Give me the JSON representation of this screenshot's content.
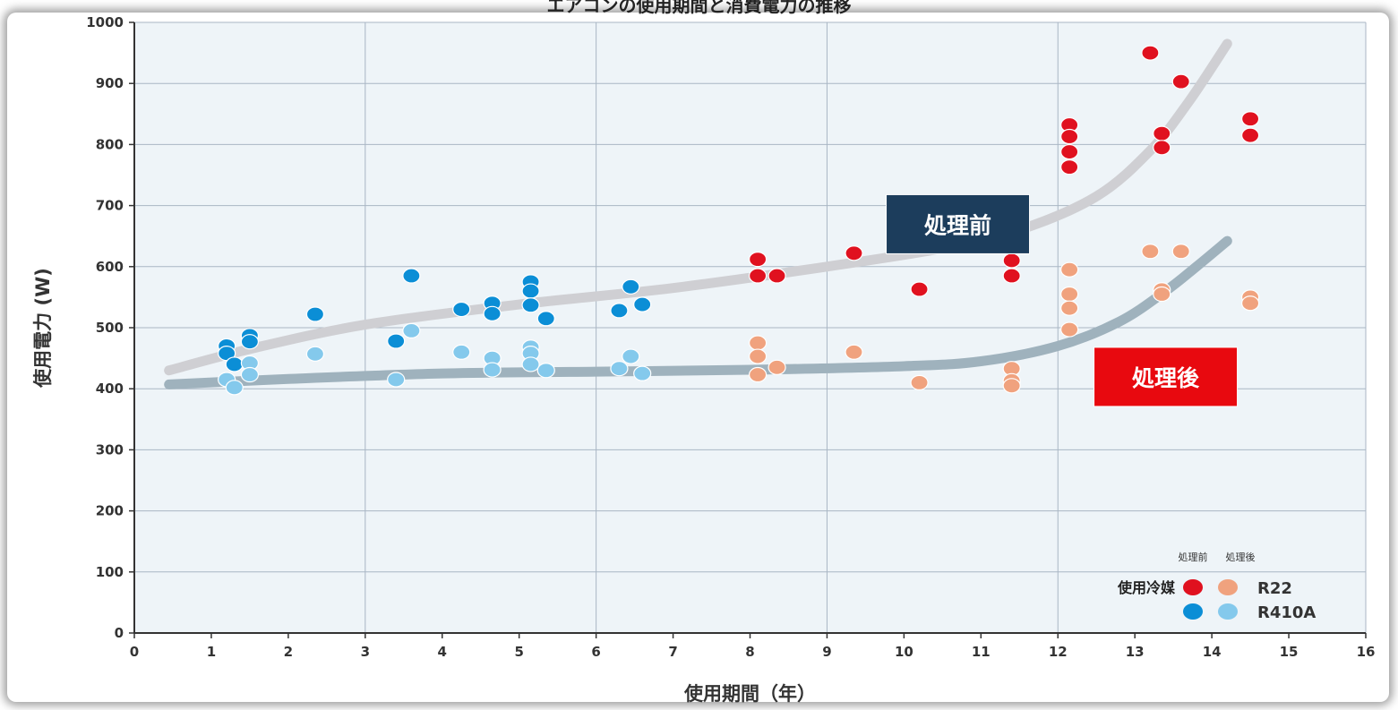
{
  "chart_data": {
    "type": "scatter",
    "title": "エアコンの使用期間と消費電力の推移",
    "xlabel": "使用期間（年）",
    "ylabel": "使用電力 (W)",
    "xlim": [
      0,
      16
    ],
    "ylim": [
      0,
      1000
    ],
    "x_ticks": [
      "0",
      "1",
      "2",
      "3",
      "4",
      "5",
      "6",
      "7",
      "8",
      "9",
      "10",
      "11",
      "12",
      "13",
      "14",
      "15",
      "16"
    ],
    "y_ticks": [
      "0",
      "100",
      "200",
      "300",
      "400",
      "500",
      "600",
      "700",
      "800",
      "900",
      "1000"
    ],
    "grid": true,
    "series": [
      {
        "name": "R22 処理前",
        "color": "#e0111f",
        "points": [
          [
            8.1,
            612
          ],
          [
            8.1,
            585
          ],
          [
            8.35,
            585
          ],
          [
            9.35,
            622
          ],
          [
            10.2,
            563
          ],
          [
            11.4,
            610
          ],
          [
            11.4,
            585
          ],
          [
            12.15,
            832
          ],
          [
            12.15,
            813
          ],
          [
            12.15,
            788
          ],
          [
            12.15,
            763
          ],
          [
            13.2,
            950
          ],
          [
            13.35,
            818
          ],
          [
            13.35,
            795
          ],
          [
            13.6,
            903
          ],
          [
            14.5,
            842
          ],
          [
            14.5,
            815
          ]
        ]
      },
      {
        "name": "R22 処理後",
        "color": "#f0a27e",
        "points": [
          [
            8.1,
            475
          ],
          [
            8.1,
            453
          ],
          [
            8.1,
            423
          ],
          [
            8.35,
            435
          ],
          [
            9.35,
            460
          ],
          [
            10.2,
            410
          ],
          [
            11.4,
            433
          ],
          [
            11.4,
            413
          ],
          [
            11.4,
            405
          ],
          [
            12.15,
            595
          ],
          [
            12.15,
            555
          ],
          [
            12.15,
            532
          ],
          [
            12.15,
            497
          ],
          [
            13.2,
            625
          ],
          [
            13.35,
            562
          ],
          [
            13.35,
            555
          ],
          [
            13.6,
            625
          ],
          [
            14.5,
            550
          ],
          [
            14.5,
            540
          ]
        ]
      },
      {
        "name": "R410A 処理前",
        "color": "#0b8ed6",
        "points": [
          [
            1.2,
            470
          ],
          [
            1.2,
            458
          ],
          [
            1.3,
            440
          ],
          [
            1.5,
            487
          ],
          [
            1.5,
            477
          ],
          [
            2.35,
            522
          ],
          [
            3.4,
            478
          ],
          [
            3.6,
            585
          ],
          [
            4.25,
            530
          ],
          [
            4.65,
            540
          ],
          [
            4.65,
            523
          ],
          [
            5.15,
            575
          ],
          [
            5.15,
            560
          ],
          [
            5.15,
            537
          ],
          [
            5.35,
            515
          ],
          [
            6.3,
            528
          ],
          [
            6.45,
            567
          ],
          [
            6.6,
            538
          ]
        ]
      },
      {
        "name": "R410A 処理後",
        "color": "#84c9ec",
        "points": [
          [
            1.2,
            415
          ],
          [
            1.3,
            402
          ],
          [
            1.5,
            442
          ],
          [
            1.5,
            423
          ],
          [
            2.35,
            457
          ],
          [
            3.4,
            415
          ],
          [
            3.6,
            495
          ],
          [
            4.25,
            460
          ],
          [
            4.65,
            450
          ],
          [
            4.65,
            431
          ],
          [
            5.15,
            468
          ],
          [
            5.15,
            458
          ],
          [
            5.15,
            440
          ],
          [
            5.35,
            430
          ],
          [
            6.3,
            433
          ],
          [
            6.45,
            453
          ],
          [
            6.6,
            425
          ]
        ]
      }
    ],
    "trend_lines": [
      {
        "name": "処理前",
        "color": "#cfcfd3",
        "points": [
          [
            0.45,
            430
          ],
          [
            1.5,
            465
          ],
          [
            3,
            505
          ],
          [
            5,
            538
          ],
          [
            7,
            565
          ],
          [
            9,
            600
          ],
          [
            10.5,
            630
          ],
          [
            11.5,
            660
          ],
          [
            12.5,
            715
          ],
          [
            13.2,
            790
          ],
          [
            13.7,
            870
          ],
          [
            14.2,
            965
          ]
        ]
      },
      {
        "name": "処理後",
        "color": "#9fb2bd",
        "points": [
          [
            0.45,
            407
          ],
          [
            2,
            416
          ],
          [
            4,
            425
          ],
          [
            6,
            428
          ],
          [
            8,
            431
          ],
          [
            10,
            437
          ],
          [
            11,
            445
          ],
          [
            12,
            470
          ],
          [
            12.8,
            510
          ],
          [
            13.4,
            560
          ],
          [
            13.8,
            600
          ],
          [
            14.2,
            642
          ]
        ]
      }
    ],
    "annotations": [
      {
        "text": "処理前",
        "x": 10.7,
        "y": 668,
        "bg": "#1c3d5c"
      },
      {
        "text": "処理後",
        "x": 13.4,
        "y": 418,
        "bg": "#e8090f"
      }
    ],
    "legend": {
      "placement": "bottom-right",
      "header_labels": [
        "処理前",
        "処理後"
      ],
      "row_label": "使用冷媒",
      "rows": [
        {
          "name": "R22",
          "colors": [
            "#e0111f",
            "#f0a27e"
          ]
        },
        {
          "name": "R410A",
          "colors": [
            "#0b8ed6",
            "#84c9ec"
          ]
        }
      ]
    },
    "plot_background": "#eef4f8"
  }
}
